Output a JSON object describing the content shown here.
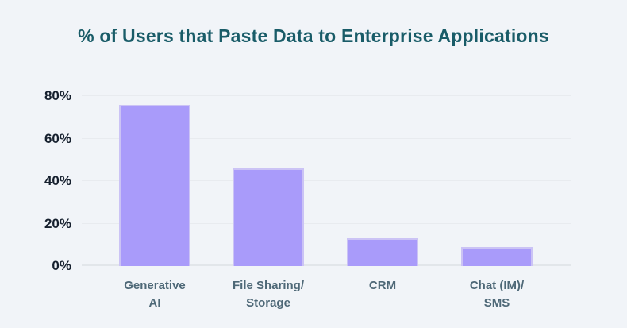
{
  "chart_data": {
    "type": "bar",
    "title": "% of Users that Paste Data to Enterprise Applications",
    "categories": [
      "Generative\nAI",
      "File Sharing/\nStorage",
      "CRM",
      "Chat (IM)/\nSMS"
    ],
    "values": [
      76,
      46,
      13,
      9
    ],
    "unit": "%",
    "xlabel": "",
    "ylabel": "",
    "ylim": [
      0,
      80
    ],
    "yticks": [
      0,
      20,
      40,
      60,
      80
    ],
    "ytick_labels": [
      "0%",
      "20%",
      "40%",
      "60%",
      "80%"
    ],
    "grid": "horizontal",
    "legend": false,
    "colors": {
      "background": "#f1f4f8",
      "title": "#195c68",
      "bar_fill": "#a99bfa",
      "bar_border": "#cbc3f5",
      "ytick_label": "#16202e",
      "xtick_label": "#4e6877",
      "gridline": "#e8ebef",
      "axis_line": "#e2e6ea"
    }
  }
}
